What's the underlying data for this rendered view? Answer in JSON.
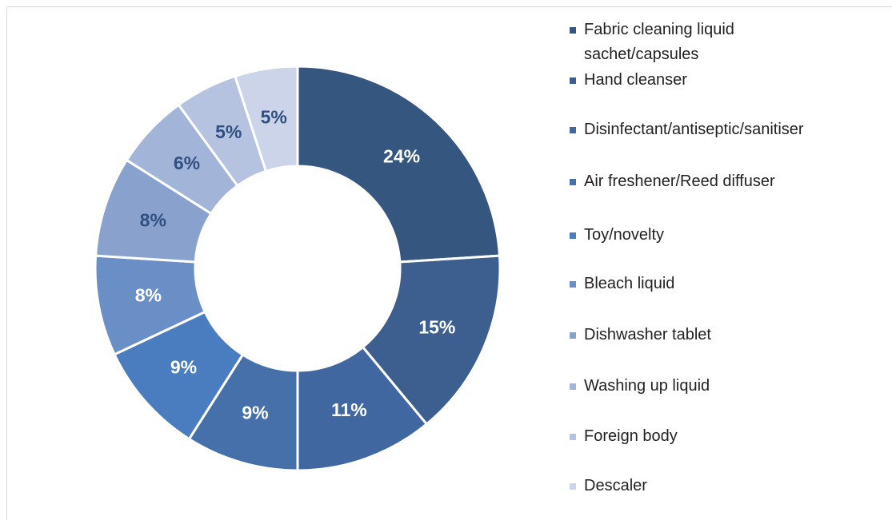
{
  "chart_data": {
    "type": "donut",
    "categories": [
      "Fabric cleaning liquid sachet/capsules",
      "Hand cleanser",
      "Disinfectant/antiseptic/sanitiser",
      "Air freshener/Reed diffuser",
      "Toy/novelty",
      "Bleach liquid",
      "Dishwasher tablet",
      "Washing up liquid",
      "Foreign body",
      "Descaler"
    ],
    "values": [
      24,
      15,
      11,
      9,
      9,
      8,
      8,
      6,
      5,
      5
    ],
    "value_labels": [
      "24%",
      "15%",
      "11%",
      "9%",
      "9%",
      "8%",
      "8%",
      "6%",
      "5%",
      "5%"
    ],
    "colors": [
      "#35577f",
      "#3c5f8f",
      "#4167a0",
      "#4570aa",
      "#4a7dbf",
      "#6a8ec6",
      "#89a2cd",
      "#a2b4d8",
      "#b5c3e0",
      "#cbd4e8"
    ],
    "label_colors": [
      "#ffffff",
      "#ffffff",
      "#ffffff",
      "#ffffff",
      "#ffffff",
      "#ffffff",
      "#2f5081",
      "#2f5081",
      "#2f5081",
      "#2f5081"
    ],
    "legend": "right"
  }
}
